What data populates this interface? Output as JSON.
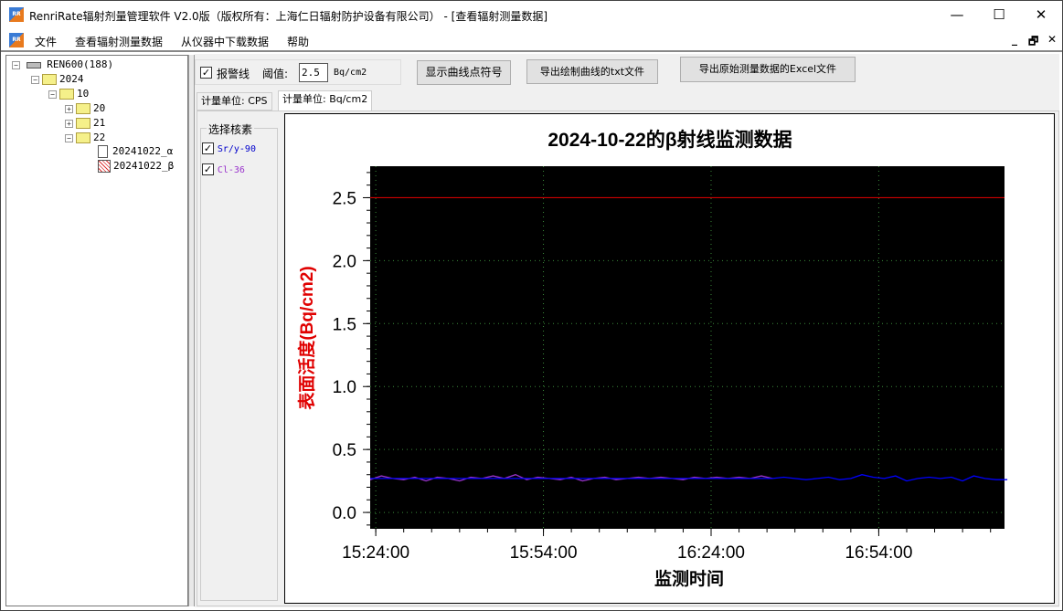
{
  "window": {
    "title": "RenriRate辐射剂量管理软件 V2.0版（版权所有：上海仁日辐射防护设备有限公司） - [查看辐射测量数据]",
    "icon": "app-logo-icon",
    "controls": [
      "minimize-icon",
      "maximize-icon",
      "close-icon"
    ]
  },
  "menu": {
    "items": [
      "文件",
      "查看辐射测量数据",
      "从仪器中下载数据",
      "帮助"
    ]
  },
  "tree": {
    "root": "REN600(188)",
    "year": "2024",
    "month": "10",
    "days": [
      "20",
      "21",
      "22"
    ],
    "files": [
      "20241022_α",
      "20241022_β"
    ]
  },
  "toolbar": {
    "alarm_label": "报警线",
    "alarm_checked": true,
    "threshold_label": "阈值:",
    "threshold_value": "2.5",
    "threshold_unit": "Bq/cm2",
    "show_symbols": "显示曲线点符号",
    "export_txt": "导出绘制曲线的txt文件",
    "export_excel": "导出原始测量数据的Excel文件"
  },
  "tabs": [
    {
      "label": "计量单位: CPS",
      "active": false
    },
    {
      "label": "计量单位: Bq/cm2",
      "active": true
    }
  ],
  "nuclides": {
    "title": "选择核素",
    "items": [
      {
        "label": "Sr/y-90",
        "checked": true,
        "color": "#0000cc"
      },
      {
        "label": "Cl-36",
        "checked": true,
        "color": "#9933cc"
      }
    ]
  },
  "chart_data": {
    "type": "line",
    "title": "2024-10-22的β射线监测数据",
    "xlabel": "监测时间",
    "ylabel": "表面活度(Bq/cm2)",
    "xticks": [
      "15:24:00",
      "15:54:00",
      "16:24:00",
      "16:54:00"
    ],
    "xlim": [
      "15:23:00",
      "17:16:30"
    ],
    "yticks": [
      "0.0",
      "0.5",
      "1.0",
      "1.5",
      "2.0",
      "2.5"
    ],
    "ylim": [
      -0.13,
      2.75
    ],
    "background": "#000000",
    "grid": true,
    "alarm_line": {
      "value": 2.5,
      "color": "#cc0000"
    },
    "series": [
      {
        "name": "Sr/y-90",
        "color": "#0000ff",
        "start": "15:23:00",
        "step_minutes": 2,
        "values": [
          0.27,
          0.27,
          0.27,
          0.27,
          0.27,
          0.27,
          0.27,
          0.27,
          0.27,
          0.27,
          0.27,
          0.27,
          0.27,
          0.27,
          0.27,
          0.27,
          0.27,
          0.27,
          0.27,
          0.27,
          0.27,
          0.27,
          0.27,
          0.27,
          0.27,
          0.27,
          0.27,
          0.27,
          0.27,
          0.27,
          0.27,
          0.27,
          0.27,
          0.27,
          0.27,
          0.27,
          0.27,
          0.28,
          0.27,
          0.26,
          0.27,
          0.28,
          0.26,
          0.27,
          0.3,
          0.28,
          0.27,
          0.29,
          0.25,
          0.27,
          0.28,
          0.27,
          0.28,
          0.25,
          0.29,
          0.27,
          0.26,
          0.26
        ]
      },
      {
        "name": "Cl-36",
        "color": "#9933cc",
        "start": "15:23:00",
        "step_minutes": 2,
        "values": [
          0.26,
          0.29,
          0.27,
          0.26,
          0.28,
          0.25,
          0.28,
          0.27,
          0.25,
          0.28,
          0.27,
          0.29,
          0.27,
          0.3,
          0.26,
          0.28,
          0.27,
          0.26,
          0.28,
          0.25,
          0.27,
          0.28,
          0.26,
          0.27,
          0.28,
          0.27,
          0.28,
          0.27,
          0.26,
          0.28,
          0.27,
          0.28,
          0.27,
          0.28,
          0.27,
          0.29,
          0.27
        ]
      }
    ]
  }
}
